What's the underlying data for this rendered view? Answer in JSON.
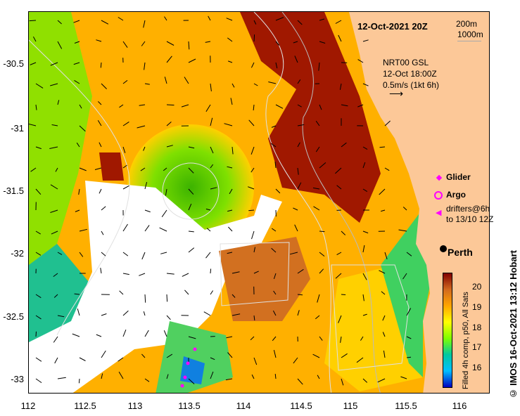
{
  "title": "12-Oct-2021 20Z",
  "scale": {
    "label_200": "200m",
    "label_1000": "1000m"
  },
  "current_legend": {
    "line1": "NRT00 GSL",
    "line2": "12-Oct 18:00Z",
    "line3": "0.5m/s (1kt 6h)"
  },
  "legend": {
    "glider": "Glider",
    "argo": "Argo",
    "drifters_line1": "drifters@6h",
    "drifters_line2": "to 13/10 12Z",
    "glider_color": "#ff00ff",
    "argo_color": "#ff00ff",
    "drifter_color": "#ff00ff"
  },
  "city": {
    "name": "Perth"
  },
  "colorbar": {
    "caption": "Filled 4h comp, p50, All Sats",
    "ticks": [
      "20",
      "19",
      "18",
      "17",
      "16"
    ],
    "stops": [
      "#800000",
      "#d2691e",
      "#ffa500",
      "#ffff00",
      "#7fff00",
      "#00c8a0",
      "#00bfff",
      "#0000c0"
    ]
  },
  "axes": {
    "x_ticks": [
      "112",
      "112.5",
      "113",
      "113.5",
      "114",
      "114.5",
      "115",
      "115.5",
      "116"
    ],
    "y_ticks": [
      "-30.5",
      "-31",
      "-31.5",
      "-32",
      "-32.5",
      "-33"
    ]
  },
  "footer": "IMOS 16-Oct-2021 13:12 Hobart",
  "copyright_symbol": "©",
  "colors": {
    "land": "#fcc898",
    "sea_white": "#ffffff"
  }
}
